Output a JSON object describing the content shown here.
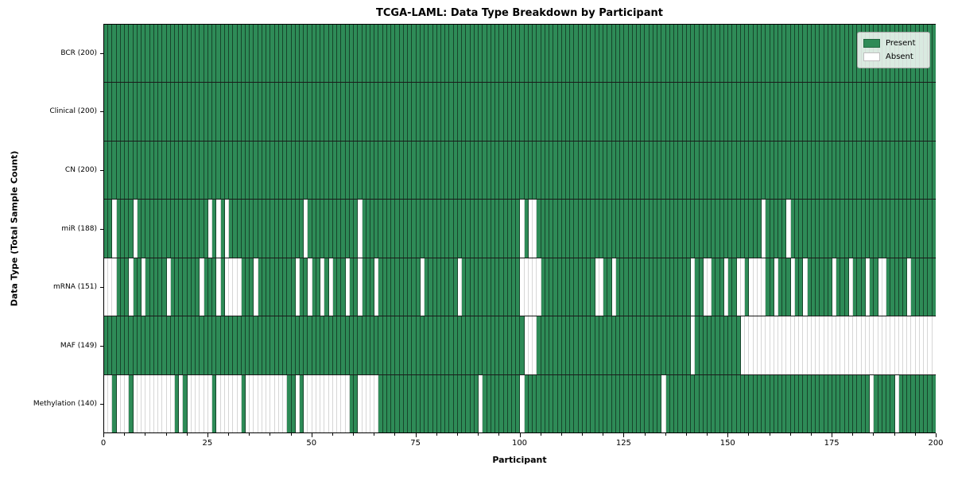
{
  "chart_data": {
    "type": "heatmap",
    "title": "TCGA-LAML: Data Type Breakdown by Participant",
    "xlabel": "Participant",
    "ylabel": "Data Type (Total Sample Count)",
    "x_min": 0,
    "x_max": 200,
    "x_ticks": [
      0,
      25,
      50,
      75,
      100,
      125,
      150,
      175,
      200
    ],
    "x_minor_tick_interval": 5,
    "n_participants": 200,
    "grid": false,
    "legend_position": "upper right",
    "legend": [
      {
        "label": "Present",
        "color": "#2e8b57"
      },
      {
        "label": "Absent",
        "color": "#ffffff"
      }
    ],
    "colors": {
      "present": "#2e8b57",
      "absent": "#ffffff",
      "cell_edge_present": "rgba(0,0,0,0.50)",
      "cell_edge_absent": "rgba(0,0,0,0.16)",
      "row_divider": "#1a1a1a"
    },
    "rows": [
      {
        "label": "BCR (200)",
        "name": "bcr",
        "present_count": 200,
        "absent": []
      },
      {
        "label": "Clinical (200)",
        "name": "clinical",
        "present_count": 200,
        "absent": []
      },
      {
        "label": "CN (200)",
        "name": "cn",
        "present_count": 200,
        "absent": []
      },
      {
        "label": "miR (188)",
        "name": "mir",
        "present_count": 188,
        "absent": [
          2,
          7,
          25,
          27,
          29,
          48,
          61,
          100,
          102,
          103,
          158,
          164
        ]
      },
      {
        "label": "mRNA (151)",
        "name": "mrna",
        "present_count": 151,
        "absent": [
          0,
          1,
          2,
          6,
          9,
          15,
          23,
          27,
          29,
          30,
          31,
          32,
          36,
          46,
          49,
          52,
          54,
          58,
          61,
          65,
          76,
          85,
          100,
          101,
          102,
          103,
          104,
          118,
          119,
          122,
          141,
          144,
          145,
          149,
          152,
          153,
          155,
          156,
          157,
          158,
          161,
          165,
          168,
          175,
          179,
          183,
          186,
          187,
          193
        ]
      },
      {
        "label": "MAF (149)",
        "name": "maf",
        "present_count": 149,
        "absent": [
          101,
          102,
          103,
          141,
          153,
          154,
          155,
          156,
          157,
          158,
          159,
          160,
          161,
          162,
          163,
          164,
          165,
          166,
          167,
          168,
          169,
          170,
          171,
          172,
          173,
          174,
          175,
          176,
          177,
          178,
          179,
          180,
          181,
          182,
          183,
          184,
          185,
          186,
          187,
          188,
          189,
          190,
          191,
          192,
          193,
          194,
          195,
          196,
          197,
          198,
          199
        ]
      },
      {
        "label": "Methylation (140)",
        "name": "methylation",
        "present_count": 140,
        "absent": [
          0,
          1,
          3,
          4,
          5,
          7,
          8,
          9,
          10,
          11,
          12,
          13,
          14,
          15,
          16,
          18,
          20,
          21,
          22,
          23,
          24,
          25,
          27,
          28,
          29,
          30,
          31,
          32,
          34,
          35,
          36,
          37,
          38,
          39,
          40,
          41,
          42,
          43,
          46,
          48,
          49,
          50,
          51,
          52,
          53,
          54,
          55,
          56,
          57,
          58,
          61,
          62,
          63,
          64,
          65,
          90,
          100,
          134,
          184,
          190
        ]
      }
    ]
  }
}
